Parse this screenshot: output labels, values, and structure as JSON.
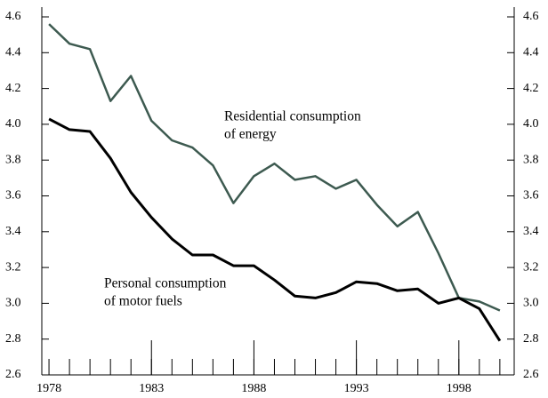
{
  "chart_data": {
    "type": "line",
    "x": [
      1978,
      1979,
      1980,
      1981,
      1982,
      1983,
      1984,
      1985,
      1986,
      1987,
      1988,
      1989,
      1990,
      1991,
      1992,
      1993,
      1994,
      1995,
      1996,
      1997,
      1998,
      1999,
      2000
    ],
    "series": [
      {
        "color": "#3d5a50",
        "values": [
          4.56,
          4.45,
          4.42,
          4.13,
          4.27,
          4.02,
          3.91,
          3.87,
          3.77,
          3.56,
          3.71,
          3.78,
          3.69,
          3.71,
          3.64,
          3.69,
          3.55,
          3.43,
          3.51,
          3.28,
          3.03,
          3.01,
          2.96
        ]
      },
      {
        "color": "#000000",
        "values": [
          4.03,
          3.97,
          3.96,
          3.81,
          3.62,
          3.48,
          3.36,
          3.27,
          3.27,
          3.21,
          3.21,
          3.13,
          3.04,
          3.03,
          3.06,
          3.12,
          3.11,
          3.07,
          3.08,
          3.0,
          3.03,
          2.97,
          2.79
        ]
      }
    ],
    "annotations": [
      {
        "lines": [
          "Residential consumption",
          "of energy"
        ]
      },
      {
        "lines": [
          "Personal consumption",
          "of motor fuels"
        ]
      }
    ],
    "xlim": [
      1977.65,
      2000.7
    ],
    "xticks": [
      1978,
      1983,
      1988,
      1993,
      1998
    ],
    "ylim": [
      2.6,
      4.6
    ],
    "yticks": [
      2.6,
      2.8,
      {
        "value": 3,
        "label": "3.0"
      },
      3.2,
      3.4,
      3.6,
      3.8,
      {
        "value": 4,
        "label": "4.0"
      },
      4.2,
      4.4,
      4.6
    ],
    "y2lim": [
      2.6,
      4.6
    ],
    "y2ticks": [
      2.6,
      2.8,
      {
        "value": 3,
        "label": "3.0"
      },
      3.2,
      3.4,
      3.6,
      3.8,
      {
        "value": 4,
        "label": "4.0"
      },
      4.2,
      4.4,
      4.6
    ]
  }
}
